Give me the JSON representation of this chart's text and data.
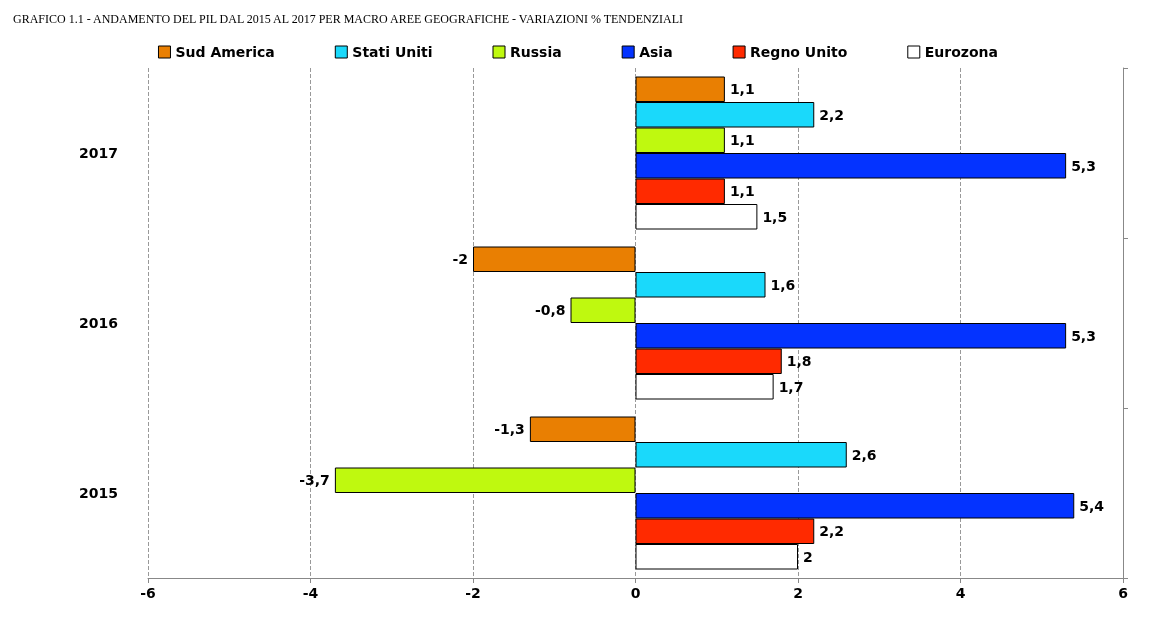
{
  "chart_data": {
    "type": "bar",
    "orientation": "horizontal",
    "title": "GRAFICO 1.1 - ANDAMENTO DEL PIL DAL 2015 AL 2017 PER MACRO AREE GEOGRAFICHE - VARIAZIONI % TENDENZIALI",
    "categories": [
      "2017",
      "2016",
      "2015"
    ],
    "series": [
      {
        "name": "Sud America",
        "color": "#e97f02",
        "values": [
          1.1,
          -2,
          -1.3
        ],
        "value_labels": [
          "1,1",
          "-2",
          "-1,3"
        ]
      },
      {
        "name": "Stati Uniti",
        "color": "#1ad9fb",
        "values": [
          2.2,
          1.6,
          2.6
        ],
        "value_labels": [
          "2,2",
          "1,6",
          "2,6"
        ]
      },
      {
        "name": "Russia",
        "color": "#bff90f",
        "values": [
          1.1,
          -0.8,
          -3.7
        ],
        "value_labels": [
          "1,1",
          "-0,8",
          "-3,7"
        ]
      },
      {
        "name": "Asia",
        "color": "#0433ff",
        "values": [
          5.3,
          5.3,
          5.4
        ],
        "value_labels": [
          "5,3",
          "5,3",
          "5,4"
        ]
      },
      {
        "name": "Regno Unito",
        "color": "#ff2a00",
        "values": [
          1.1,
          1.8,
          2.2
        ],
        "value_labels": [
          "1,1",
          "1,8",
          "2,2"
        ]
      },
      {
        "name": "Eurozona",
        "color": "#ffffff",
        "values": [
          1.5,
          1.7,
          2
        ],
        "value_labels": [
          "1,5",
          "1,7",
          "2"
        ]
      }
    ],
    "xlim": [
      -6,
      6
    ],
    "xticks": [
      -6,
      -4,
      -2,
      0,
      2,
      4,
      6
    ],
    "grid": "x",
    "legend": "top"
  }
}
